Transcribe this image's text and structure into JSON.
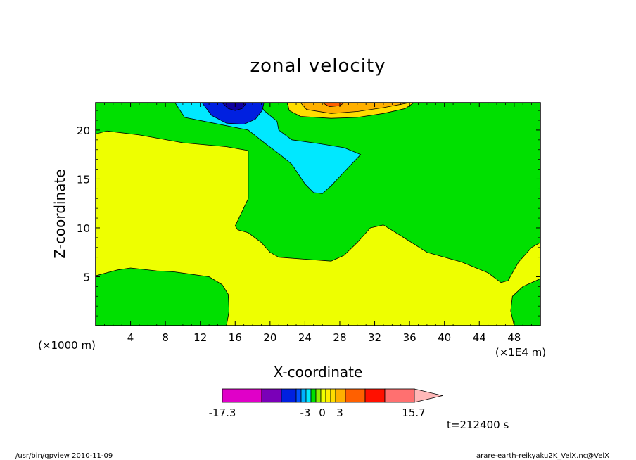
{
  "chart_data": {
    "type": "contour",
    "title": "zonal velocity",
    "xlabel": "X-coordinate",
    "ylabel": "Z-coordinate",
    "xaxis": {
      "ticks": [
        4,
        8,
        12,
        16,
        20,
        24,
        28,
        32,
        36,
        40,
        44,
        48
      ],
      "tick_labels": [
        "4",
        "8",
        "12",
        "16",
        "20",
        "24",
        "28",
        "32",
        "36",
        "40",
        "44",
        "48"
      ],
      "range": [
        0,
        51
      ],
      "unit_left": "(×1000 m)",
      "unit_right": "(×1E4 m)"
    },
    "yaxis": {
      "ticks": [
        5,
        10,
        15,
        20
      ],
      "tick_labels": [
        "5",
        "10",
        "15",
        "20"
      ],
      "range": [
        0,
        22.8
      ]
    },
    "regions": [
      {
        "name": "green-background",
        "level": "0 to 3",
        "color": "#00e000",
        "points": [
          [
            0,
            0
          ],
          [
            51,
            0
          ],
          [
            51,
            22.8
          ],
          [
            0,
            22.8
          ]
        ]
      },
      {
        "name": "yellow-main",
        "level": "0 to -3",
        "color": "#eeff00",
        "points": [
          [
            0,
            0
          ],
          [
            15,
            0
          ],
          [
            15.3,
            1.5
          ],
          [
            15.2,
            3.2
          ],
          [
            14.5,
            4.2
          ],
          [
            13,
            5
          ],
          [
            9,
            5.5
          ],
          [
            7,
            5.6
          ],
          [
            4,
            5.9
          ],
          [
            2.5,
            5.7
          ],
          [
            0,
            5.1
          ],
          [
            0,
            19.6
          ],
          [
            1.3,
            19.9
          ],
          [
            5,
            19.5
          ],
          [
            10,
            18.7
          ],
          [
            15,
            18.3
          ],
          [
            17.5,
            17.9
          ],
          [
            17.5,
            13
          ],
          [
            16,
            10.2
          ],
          [
            16.3,
            9.8
          ],
          [
            17.5,
            9.5
          ],
          [
            19,
            8.5
          ],
          [
            20,
            7.5
          ],
          [
            21,
            7
          ],
          [
            24,
            6.8
          ],
          [
            27,
            6.6
          ],
          [
            28.5,
            7.2
          ],
          [
            30,
            8.5
          ],
          [
            31.5,
            10
          ],
          [
            33,
            10.3
          ],
          [
            35,
            9.2
          ],
          [
            38,
            7.5
          ],
          [
            42,
            6.5
          ],
          [
            45,
            5.4
          ],
          [
            46.5,
            4.4
          ],
          [
            47.3,
            4.6
          ],
          [
            48.5,
            6.5
          ],
          [
            50,
            8
          ],
          [
            51,
            8.5
          ],
          [
            51,
            4.8
          ],
          [
            49,
            4
          ],
          [
            47.8,
            3
          ],
          [
            47.6,
            1.5
          ],
          [
            48,
            0
          ],
          [
            51,
            0
          ]
        ]
      },
      {
        "name": "cyan-trough",
        "level": "-3 to -5",
        "color": "#00e8ff",
        "points": [
          [
            9.1,
            22.8
          ],
          [
            10.2,
            21.3
          ],
          [
            13,
            20.8
          ],
          [
            17.5,
            20
          ],
          [
            19.5,
            18.6
          ],
          [
            21,
            17.6
          ],
          [
            22.5,
            16.5
          ],
          [
            24,
            14.5
          ],
          [
            25,
            13.6
          ],
          [
            26,
            13.5
          ],
          [
            27,
            14.3
          ],
          [
            29,
            16.2
          ],
          [
            30.4,
            17.5
          ],
          [
            28.5,
            18.2
          ],
          [
            25.7,
            18.6
          ],
          [
            22.5,
            19
          ],
          [
            21,
            20
          ],
          [
            20.8,
            20.9
          ],
          [
            19.3,
            22
          ],
          [
            18.8,
            22.8
          ]
        ]
      },
      {
        "name": "blue-core",
        "level": "-5 to -11",
        "color": "#0020e0",
        "points": [
          [
            12.2,
            22.8
          ],
          [
            13.3,
            21.5
          ],
          [
            15,
            20.7
          ],
          [
            17,
            20.6
          ],
          [
            18.3,
            21.1
          ],
          [
            19.1,
            22
          ],
          [
            19.3,
            22.8
          ]
        ]
      },
      {
        "name": "navy-center",
        "level": "< -11",
        "color": "#1000a0",
        "points": [
          [
            14.5,
            22.8
          ],
          [
            15.2,
            22.2
          ],
          [
            16,
            22
          ],
          [
            16.8,
            22.2
          ],
          [
            17.3,
            22.8
          ]
        ]
      },
      {
        "name": "light-orange-band",
        "level": "3 to 5",
        "color": "#ffdd00",
        "points": [
          [
            22,
            22.8
          ],
          [
            22.2,
            22
          ],
          [
            23.5,
            21.4
          ],
          [
            27,
            21.2
          ],
          [
            30,
            21.3
          ],
          [
            33,
            21.7
          ],
          [
            35.5,
            22.2
          ],
          [
            36.5,
            22.8
          ]
        ]
      },
      {
        "name": "orange-band",
        "level": "5 to 10",
        "color": "#ffb000",
        "points": [
          [
            23.5,
            22.8
          ],
          [
            24.2,
            22.1
          ],
          [
            27,
            21.7
          ],
          [
            30,
            21.9
          ],
          [
            33,
            22.3
          ],
          [
            36,
            22.8
          ]
        ]
      },
      {
        "name": "red-orange-core",
        "level": "> 10",
        "color": "#ff6000",
        "points": [
          [
            26,
            22.8
          ],
          [
            26.8,
            22.4
          ],
          [
            28,
            22.5
          ],
          [
            28.5,
            22.8
          ]
        ]
      }
    ],
    "colorbar": {
      "colors": [
        "#e000c8",
        "#7a00b8",
        "#0020e0",
        "#0050ff",
        "#00b0ff",
        "#00e8ff",
        "#00e000",
        "#90f000",
        "#eeff00",
        "#ffee00",
        "#ffdd00",
        "#ffb000",
        "#ff6000",
        "#ff1000",
        "#ff7070"
      ],
      "widths": [
        12,
        6,
        4.5,
        1.5,
        1.5,
        1.5,
        1.5,
        1.5,
        1.5,
        1.5,
        1.5,
        3,
        6,
        6,
        9
      ],
      "extend_color": "#ffb8b8",
      "labels": [
        "-17.3",
        "-3",
        "0",
        "3",
        "15.7"
      ],
      "label_values": [
        -17.3,
        -3,
        0,
        3,
        15.7
      ]
    },
    "time_label": "t=212400 s"
  },
  "footer": {
    "left": "/usr/bin/gpview  2010-11-09",
    "right": "arare-earth-reikyaku2K_VelX.nc@VelX"
  }
}
